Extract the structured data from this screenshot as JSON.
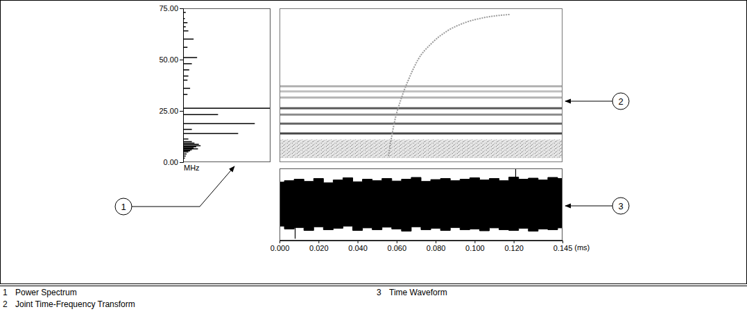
{
  "chart_data": [
    {
      "type": "bar",
      "orientation": "horizontal",
      "y_label": "MHz",
      "x": [
        73,
        70,
        68,
        66,
        64,
        60,
        56,
        51,
        48,
        45,
        42,
        40,
        36,
        33,
        26.3,
        23.2,
        18.8,
        16,
        14,
        11.3,
        10,
        9.3,
        8.7,
        8,
        7.5,
        7,
        6.5,
        6,
        5.5,
        5,
        4,
        3,
        2
      ],
      "values": [
        0.03,
        0.02,
        0.05,
        0.03,
        0.06,
        0.12,
        0.05,
        0.16,
        0.1,
        0.07,
        0.06,
        0.05,
        0.08,
        0.05,
        1.0,
        0.4,
        0.82,
        0.1,
        0.63,
        0.06,
        0.1,
        0.13,
        0.18,
        0.2,
        0.15,
        0.12,
        0.17,
        0.1,
        0.08,
        0.06,
        0.04,
        0.03,
        0.02
      ],
      "color": "#000000",
      "xlim": [
        0,
        1
      ],
      "ylim": [
        0,
        75
      ],
      "yticks": [
        {
          "value": 0,
          "label": "0.00"
        },
        {
          "value": 25,
          "label": "25.00"
        },
        {
          "value": 50,
          "label": "50.00"
        },
        {
          "value": 75,
          "label": "75.00"
        }
      ],
      "tick_labels": "y"
    },
    {
      "type": "spectrogram",
      "xlim": [
        0,
        0.145
      ],
      "ylim": [
        0,
        75
      ],
      "tick_labels": false,
      "color_range": [
        0,
        1
      ],
      "noise_band": [
        2,
        11
      ],
      "bands": [
        {
          "frequency": 37,
          "intensity": 0.3
        },
        {
          "frequency": 34.5,
          "intensity": 0.25
        },
        {
          "frequency": 31.5,
          "intensity": 0.3
        },
        {
          "frequency": 26.3,
          "intensity": 0.65
        },
        {
          "frequency": 23.2,
          "intensity": 0.45
        },
        {
          "frequency": 18.8,
          "intensity": 0.6
        },
        {
          "frequency": 14,
          "intensity": 0.7
        }
      ],
      "chirp": {
        "x": [
          0.0558,
          0.057,
          0.059,
          0.062,
          0.066,
          0.071,
          0.078,
          0.086,
          0.095,
          0.105,
          0.118
        ],
        "y": [
          3,
          10,
          20,
          30,
          40,
          50,
          58,
          64,
          68,
          70.5,
          72
        ]
      }
    },
    {
      "type": "area",
      "x_label": "(ms)",
      "color": "#000000",
      "x": [
        0,
        0.005,
        0.01,
        0.015,
        0.02,
        0.025,
        0.03,
        0.035,
        0.04,
        0.045,
        0.05,
        0.055,
        0.06,
        0.065,
        0.07,
        0.075,
        0.08,
        0.085,
        0.09,
        0.095,
        0.1,
        0.105,
        0.11,
        0.115,
        0.12,
        0.125,
        0.13,
        0.135,
        0.14,
        0.145
      ],
      "upper": [
        0.62,
        0.66,
        0.7,
        0.64,
        0.72,
        0.6,
        0.68,
        0.74,
        0.63,
        0.7,
        0.66,
        0.72,
        0.65,
        0.7,
        0.75,
        0.64,
        0.69,
        0.72,
        0.66,
        0.7,
        0.74,
        0.68,
        0.72,
        0.66,
        0.76,
        0.7,
        0.73,
        0.68,
        0.75,
        0.72
      ],
      "lower": [
        -0.6,
        -0.68,
        -0.64,
        -0.72,
        -0.62,
        -0.7,
        -0.66,
        -0.6,
        -0.72,
        -0.65,
        -0.7,
        -0.63,
        -0.68,
        -0.74,
        -0.62,
        -0.7,
        -0.66,
        -0.72,
        -0.64,
        -0.7,
        -0.68,
        -0.73,
        -0.65,
        -0.7,
        -0.72,
        -0.66,
        -0.74,
        -0.68,
        -0.7,
        -0.65
      ],
      "spikes": {
        "x": [
          0.008,
          0.121
        ],
        "values": [
          -0.95,
          0.98
        ]
      },
      "xlim": [
        0,
        0.145
      ],
      "ylim": [
        -1,
        1
      ],
      "xticks": [
        {
          "value": 0,
          "label": "0.000"
        },
        {
          "value": 0.02,
          "label": "0.020"
        },
        {
          "value": 0.04,
          "label": "0.040"
        },
        {
          "value": 0.06,
          "label": "0.060"
        },
        {
          "value": 0.08,
          "label": "0.080"
        },
        {
          "value": 0.1,
          "label": "0.100"
        },
        {
          "value": 0.12,
          "label": "0.120"
        },
        {
          "value": 0.145,
          "label": "0.145"
        }
      ],
      "tick_labels": "x"
    }
  ],
  "callouts": [
    {
      "number": "1",
      "label": "Power Spectrum"
    },
    {
      "number": "2",
      "label": "Joint Time-Frequency Transform"
    },
    {
      "number": "3",
      "label": "Time Waveform"
    }
  ]
}
